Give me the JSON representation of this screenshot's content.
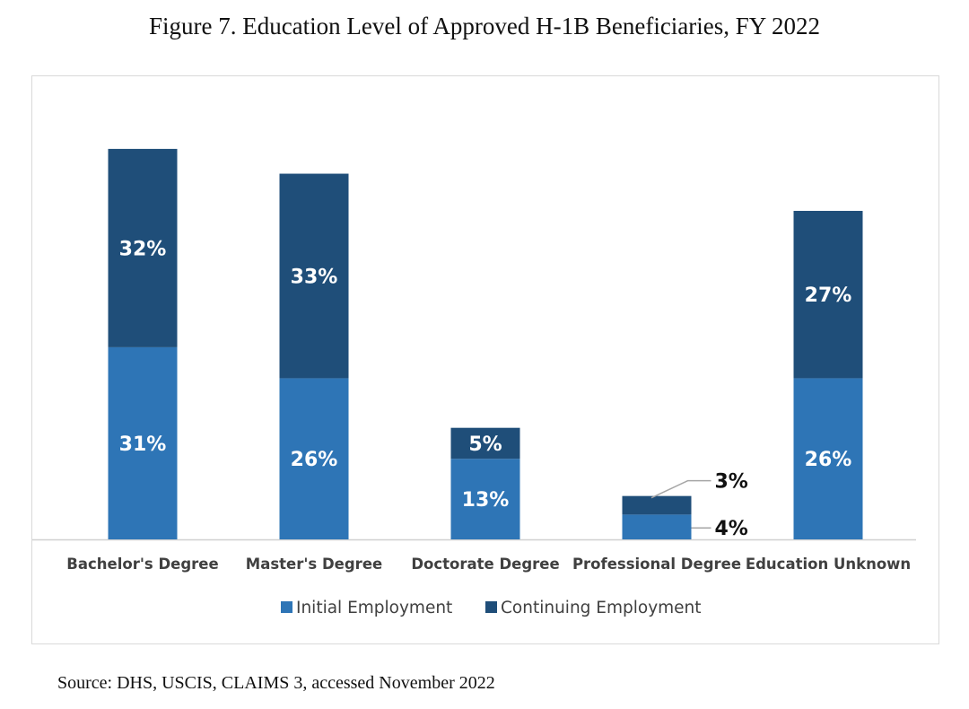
{
  "figure": {
    "title": "Figure 7. Education Level of Approved H-1B Beneficiaries, FY 2022",
    "source": "Source: DHS, USCIS, CLAIMS 3, accessed November 2022"
  },
  "chart_data": {
    "type": "bar",
    "stacked": true,
    "title": "Figure 7. Education Level of Approved H-1B Beneficiaries, FY 2022",
    "xlabel": "",
    "ylabel": "",
    "ylim": [
      0,
      70
    ],
    "grid": false,
    "legend_position": "bottom",
    "categories": [
      "Bachelor's Degree",
      "Master's Degree",
      "Doctorate Degree",
      "Professional Degree",
      "Education Unknown"
    ],
    "series": [
      {
        "name": "Initial Employment",
        "color": "#2e75b6",
        "values": [
          31,
          26,
          13,
          4,
          26
        ],
        "labels": [
          "31%",
          "26%",
          "13%",
          "4%",
          "26%"
        ]
      },
      {
        "name": "Continuing Employment",
        "color": "#1f4e79",
        "values": [
          32,
          33,
          5,
          3,
          27
        ],
        "labels": [
          "32%",
          "33%",
          "5%",
          "3%",
          "27%"
        ]
      }
    ]
  }
}
